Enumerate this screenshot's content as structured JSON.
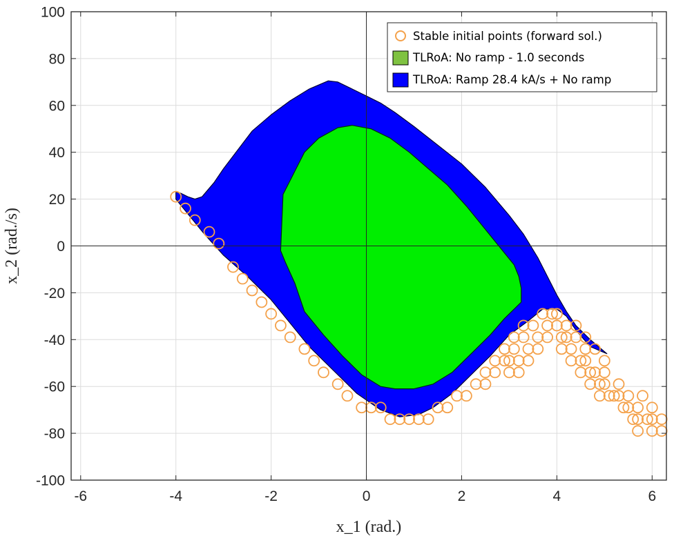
{
  "chart_data": {
    "type": "scatter",
    "xlabel": "x_1 (rad.)",
    "ylabel": "x_2 (rad./s)",
    "xlim": [
      -6.2,
      6.3
    ],
    "ylim": [
      -100,
      100
    ],
    "x_ticks": [
      "-6",
      "-4",
      "-2",
      "0",
      "2",
      "4",
      "6"
    ],
    "y_ticks": [
      "-100",
      "-80",
      "-60",
      "-40",
      "-20",
      "0",
      "20",
      "40",
      "60",
      "80",
      "100"
    ],
    "grid": true,
    "legend_position": "top-right",
    "colors": {
      "stable_points": "#f4a14a",
      "no_ramp": "#00ee00",
      "ramp": "#0000ff"
    },
    "series": [
      {
        "name": "Stable initial points (forward sol.)",
        "kind": "markers",
        "points": [
          [
            -4,
            21
          ],
          [
            -3.8,
            16
          ],
          [
            -3.6,
            11
          ],
          [
            -3.3,
            6
          ],
          [
            -3.1,
            1
          ],
          [
            -2.8,
            -9
          ],
          [
            -2.6,
            -14
          ],
          [
            -2.4,
            -19
          ],
          [
            -2.2,
            -24
          ],
          [
            -2.0,
            -29
          ],
          [
            -1.8,
            -34
          ],
          [
            -1.6,
            -39
          ],
          [
            -1.3,
            -44
          ],
          [
            -1.1,
            -49
          ],
          [
            -0.9,
            -54
          ],
          [
            -0.6,
            -59
          ],
          [
            -0.4,
            -64
          ],
          [
            -0.1,
            -69
          ],
          [
            0.1,
            -69
          ],
          [
            0.3,
            -69
          ],
          [
            0.5,
            -74
          ],
          [
            0.7,
            -74
          ],
          [
            0.9,
            -74
          ],
          [
            1.1,
            -74
          ],
          [
            1.3,
            -74
          ],
          [
            1.5,
            -69
          ],
          [
            1.7,
            -69
          ],
          [
            1.9,
            -64
          ],
          [
            2.1,
            -64
          ],
          [
            2.3,
            -59
          ],
          [
            2.5,
            -54
          ],
          [
            2.7,
            -49
          ],
          [
            2.9,
            -44
          ],
          [
            3.1,
            -39
          ],
          [
            3.3,
            -34
          ],
          [
            2.5,
            -59
          ],
          [
            2.7,
            -54
          ],
          [
            2.9,
            -49
          ],
          [
            3.1,
            -44
          ],
          [
            3.3,
            -39
          ],
          [
            3.5,
            -34
          ],
          [
            3.7,
            -29
          ],
          [
            3.9,
            -29
          ],
          [
            3.0,
            -54
          ],
          [
            3.2,
            -49
          ],
          [
            3.4,
            -44
          ],
          [
            3.6,
            -39
          ],
          [
            3.8,
            -34
          ],
          [
            4.0,
            -34
          ],
          [
            4.2,
            -39
          ],
          [
            3.0,
            -49
          ],
          [
            3.2,
            -54
          ],
          [
            3.4,
            -49
          ],
          [
            3.6,
            -44
          ],
          [
            3.8,
            -39
          ],
          [
            4.0,
            -29
          ],
          [
            4.2,
            -34
          ],
          [
            4.4,
            -39
          ],
          [
            4.6,
            -44
          ],
          [
            4.1,
            -44
          ],
          [
            4.3,
            -49
          ],
          [
            4.5,
            -54
          ],
          [
            4.7,
            -59
          ],
          [
            4.9,
            -64
          ],
          [
            4.1,
            -39
          ],
          [
            4.3,
            -44
          ],
          [
            4.5,
            -49
          ],
          [
            4.7,
            -54
          ],
          [
            4.9,
            -59
          ],
          [
            5.1,
            -64
          ],
          [
            4.4,
            -34
          ],
          [
            4.6,
            -39
          ],
          [
            4.8,
            -44
          ],
          [
            5.0,
            -49
          ],
          [
            4.6,
            -49
          ],
          [
            4.8,
            -54
          ],
          [
            5.0,
            -59
          ],
          [
            5.2,
            -64
          ],
          [
            5.4,
            -69
          ],
          [
            5.6,
            -74
          ],
          [
            5.0,
            -54
          ],
          [
            5.3,
            -59
          ],
          [
            5.5,
            -64
          ],
          [
            5.7,
            -69
          ],
          [
            5.9,
            -74
          ],
          [
            5.5,
            -69
          ],
          [
            5.7,
            -74
          ],
          [
            6.0,
            -79
          ],
          [
            6.0,
            -69
          ],
          [
            6.2,
            -74
          ],
          [
            6.2,
            -79
          ],
          [
            6.0,
            -74
          ],
          [
            5.8,
            -64
          ],
          [
            5.3,
            -64
          ],
          [
            5.7,
            -79
          ]
        ]
      },
      {
        "name": "TLRoA: No ramp - 1.0 seconds",
        "kind": "region",
        "boundary": [
          [
            -1.8,
            -2
          ],
          [
            -1.75,
            22
          ],
          [
            -1.5,
            32
          ],
          [
            -1.3,
            40
          ],
          [
            -1.0,
            46
          ],
          [
            -0.6,
            50.5
          ],
          [
            -0.3,
            51.5
          ],
          [
            0.1,
            50
          ],
          [
            0.5,
            46
          ],
          [
            0.9,
            40
          ],
          [
            1.3,
            33
          ],
          [
            1.7,
            26
          ],
          [
            2.1,
            17
          ],
          [
            2.5,
            7
          ],
          [
            2.9,
            -3
          ],
          [
            3.1,
            -8
          ],
          [
            3.2,
            -13
          ],
          [
            3.25,
            -18
          ],
          [
            3.25,
            -24
          ],
          [
            2.9,
            -31
          ],
          [
            2.6,
            -38
          ],
          [
            2.2,
            -46
          ],
          [
            1.8,
            -54
          ],
          [
            1.4,
            -59
          ],
          [
            1.0,
            -61
          ],
          [
            0.6,
            -61
          ],
          [
            0.3,
            -60
          ],
          [
            -0.1,
            -55
          ],
          [
            -0.5,
            -47
          ],
          [
            -0.9,
            -38
          ],
          [
            -1.3,
            -28
          ],
          [
            -1.5,
            -16
          ],
          [
            -1.7,
            -7
          ]
        ]
      },
      {
        "name": "TLRoA: Ramp 28.4 kA/s + No ramp",
        "kind": "region",
        "boundary": [
          [
            -4.0,
            23
          ],
          [
            -3.9,
            22.5
          ],
          [
            -3.75,
            21
          ],
          [
            -3.6,
            20
          ],
          [
            -3.45,
            21
          ],
          [
            -3.2,
            27
          ],
          [
            -3.0,
            33
          ],
          [
            -2.7,
            41
          ],
          [
            -2.4,
            49
          ],
          [
            -2.0,
            56
          ],
          [
            -1.6,
            62
          ],
          [
            -1.2,
            67
          ],
          [
            -0.8,
            70.5
          ],
          [
            -0.6,
            70
          ],
          [
            -0.3,
            67
          ],
          [
            0.0,
            64
          ],
          [
            0.3,
            61
          ],
          [
            0.6,
            57
          ],
          [
            1.0,
            51
          ],
          [
            1.5,
            43
          ],
          [
            2.0,
            35
          ],
          [
            2.5,
            25
          ],
          [
            3.0,
            13
          ],
          [
            3.3,
            5
          ],
          [
            3.6,
            -5
          ],
          [
            3.8,
            -13
          ],
          [
            4.0,
            -21
          ],
          [
            4.2,
            -28
          ],
          [
            4.4,
            -34
          ],
          [
            4.7,
            -40
          ],
          [
            5.05,
            -46
          ],
          [
            4.7,
            -43
          ],
          [
            4.4,
            -36
          ],
          [
            4.2,
            -30
          ],
          [
            4.0,
            -27
          ],
          [
            3.7,
            -27
          ],
          [
            3.4,
            -32
          ],
          [
            3.0,
            -38
          ],
          [
            2.6,
            -47
          ],
          [
            2.2,
            -55
          ],
          [
            1.8,
            -63
          ],
          [
            1.4,
            -69
          ],
          [
            1.1,
            -72
          ],
          [
            0.7,
            -73
          ],
          [
            0.3,
            -70
          ],
          [
            -0.2,
            -63
          ],
          [
            -0.7,
            -53
          ],
          [
            -1.2,
            -43
          ],
          [
            -1.6,
            -33
          ],
          [
            -2.0,
            -23
          ],
          [
            -2.5,
            -13
          ],
          [
            -3.0,
            -4
          ],
          [
            -3.4,
            5
          ],
          [
            -3.8,
            15
          ],
          [
            -4.0,
            20
          ]
        ]
      }
    ]
  }
}
